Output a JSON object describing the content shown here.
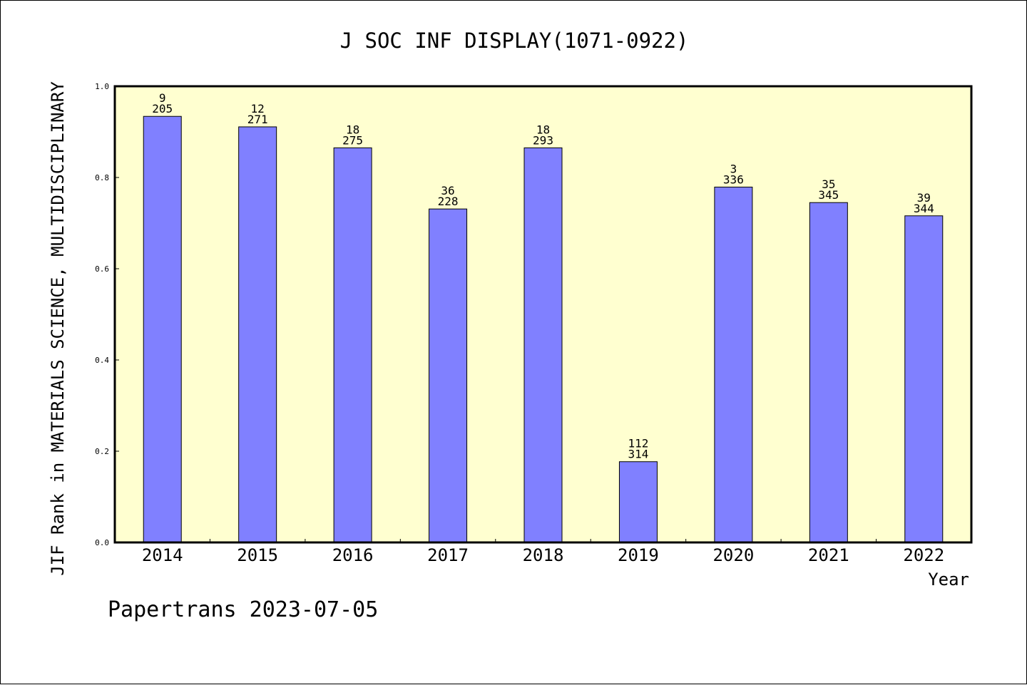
{
  "chart_data": {
    "type": "bar",
    "title": "J SOC INF DISPLAY(1071-0922)",
    "xlabel": "Year",
    "ylabel": "JIF Rank in MATERIALS SCIENCE, MULTIDISCIPLINARY",
    "categories": [
      "2014",
      "2015",
      "2016",
      "2017",
      "2018",
      "2019",
      "2020",
      "2021",
      "2022"
    ],
    "values": [
      0.934,
      0.911,
      0.865,
      0.731,
      0.865,
      0.177,
      0.779,
      0.745,
      0.716
    ],
    "rank": [
      "9",
      "12",
      "18",
      "36",
      "18",
      "112",
      "3",
      "35",
      "39"
    ],
    "total": [
      "205",
      "271",
      "275",
      "228",
      "293",
      "314",
      "336",
      "345",
      "344"
    ],
    "ylim": [
      0,
      1.0
    ],
    "yticks": [
      "0.0",
      "0.2",
      "0.4",
      "0.6",
      "0.8",
      "1.0"
    ],
    "grid": false,
    "colors": {
      "bar_fill": "#8080ff",
      "bar_stroke": "#000000",
      "plot_background": "#ffffd0"
    }
  },
  "footer": {
    "text": "Papertrans 2023-07-05"
  }
}
